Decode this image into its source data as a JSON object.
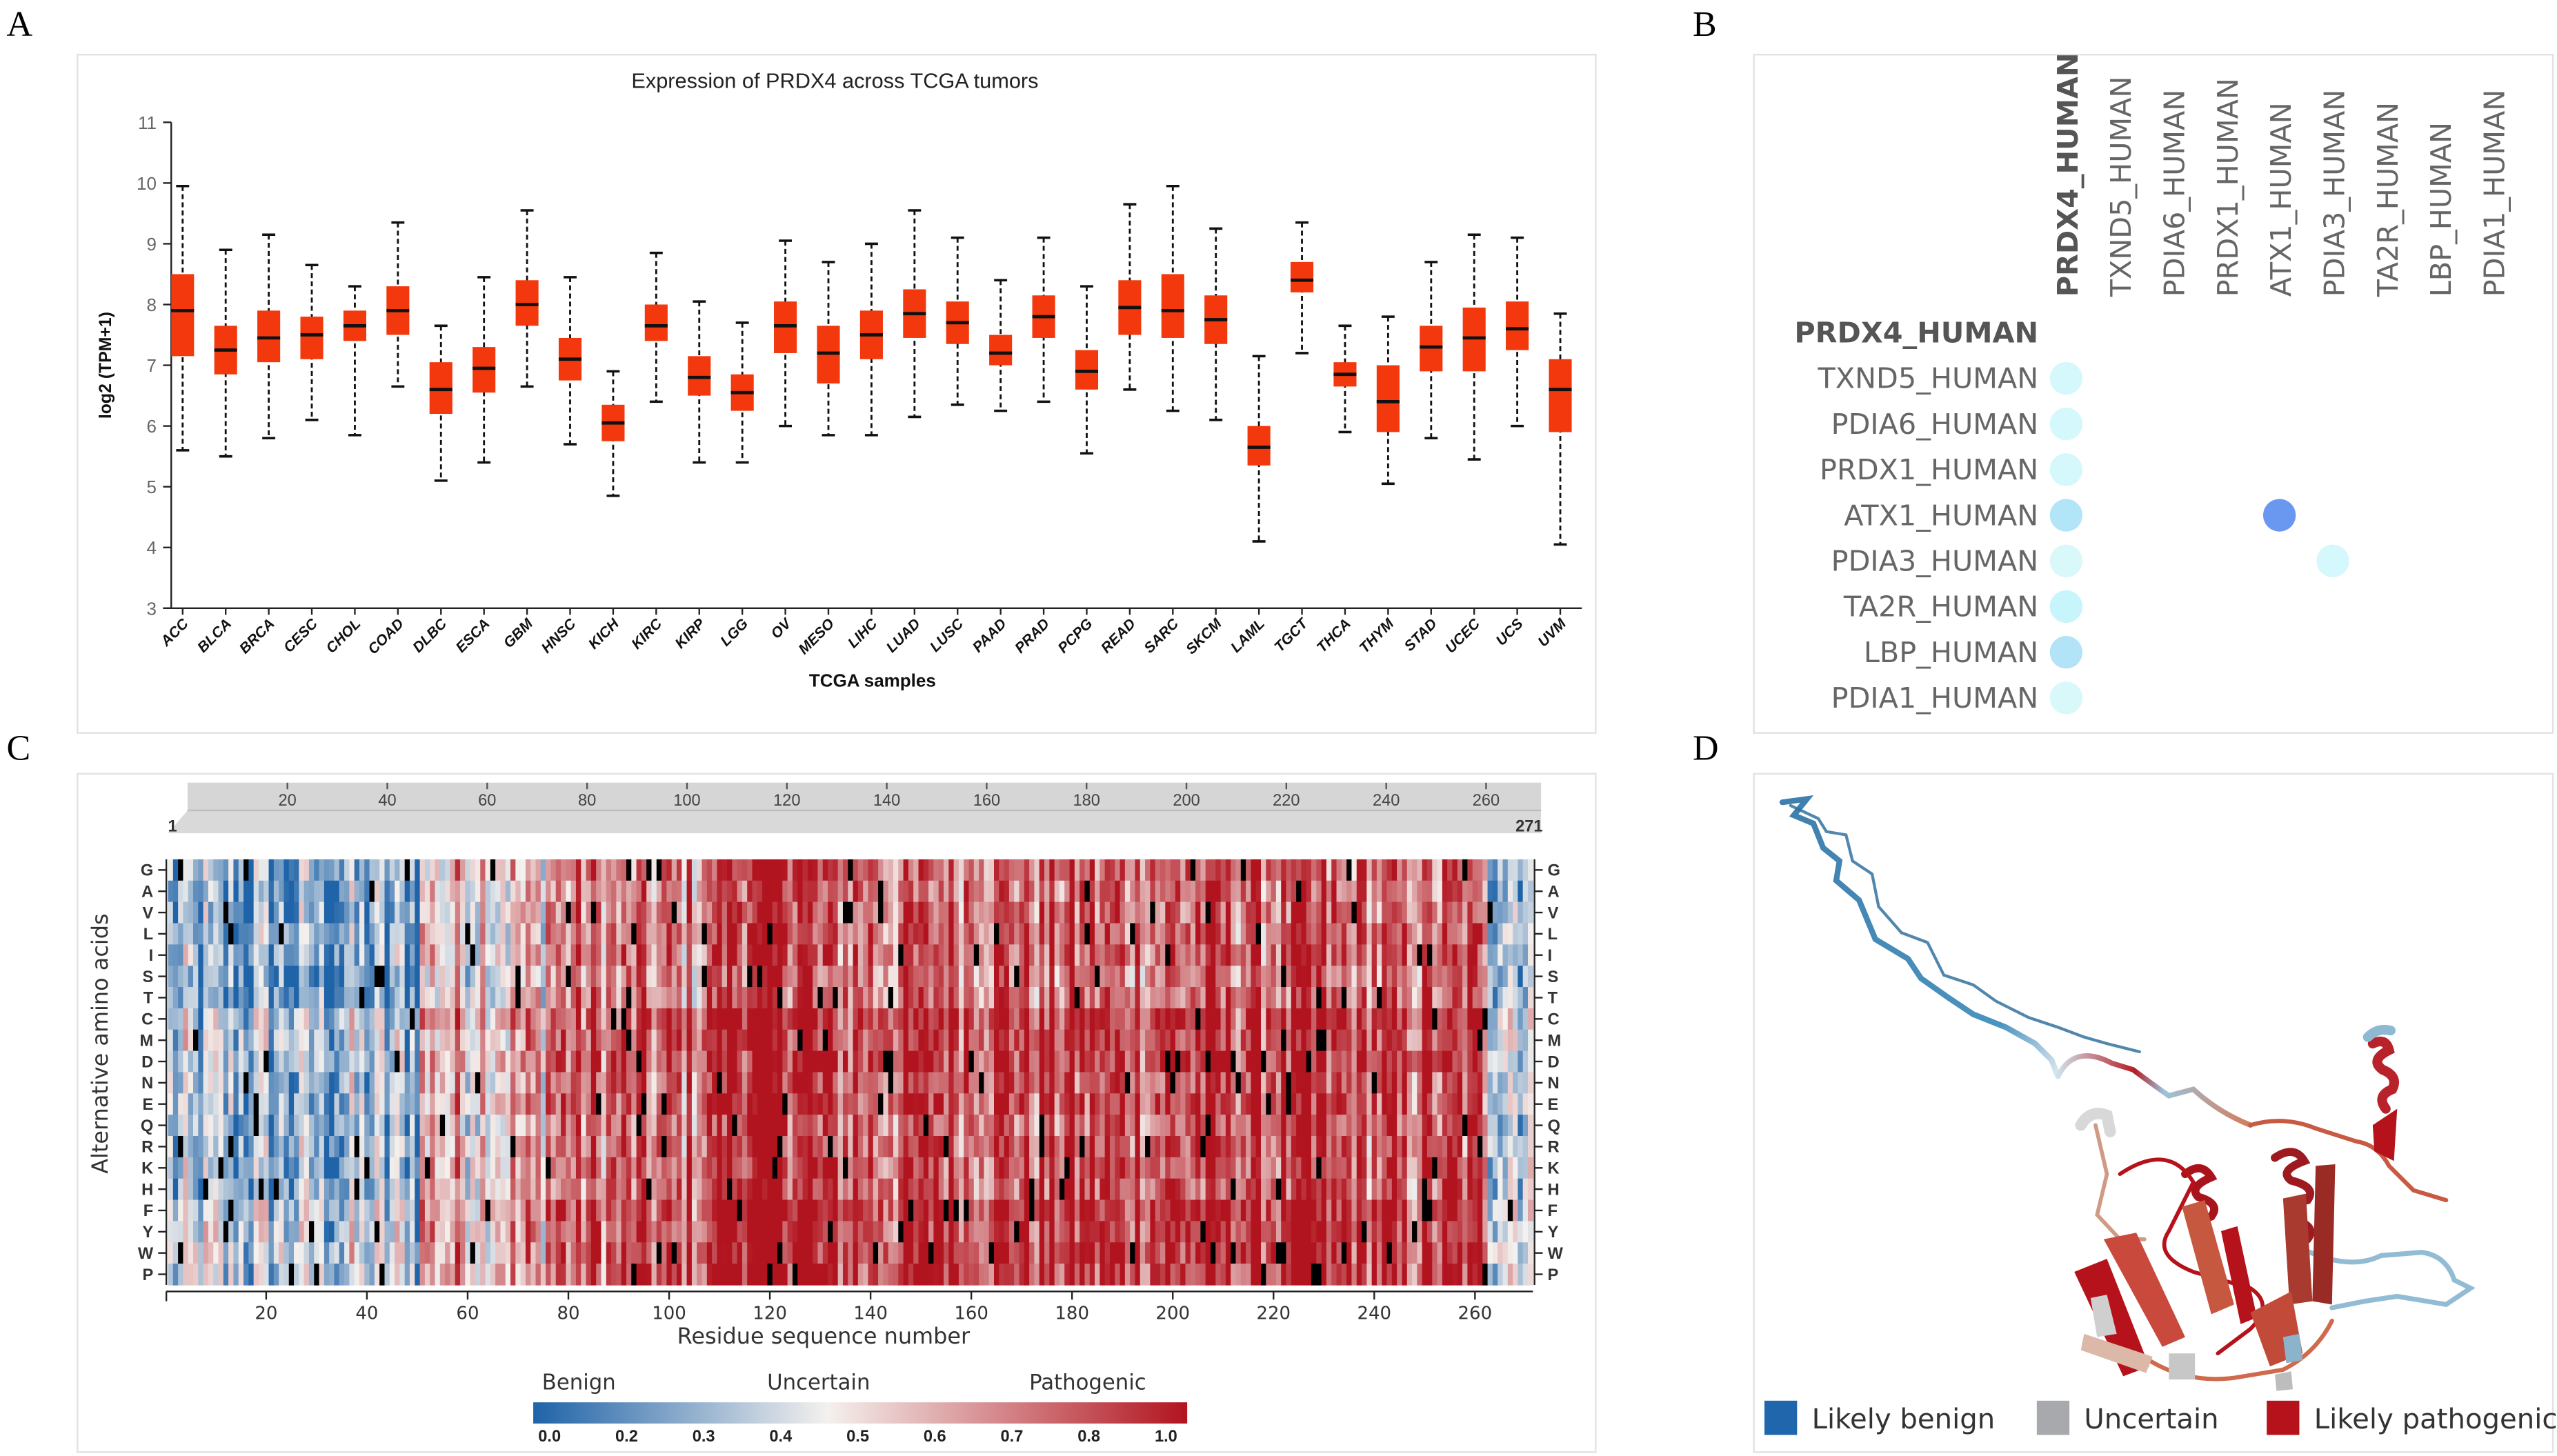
{
  "panels": {
    "a": "A",
    "b": "B",
    "c": "C",
    "d": "D"
  },
  "chart_data": [
    {
      "type": "box",
      "title": "Expression of PRDX4 across TCGA tumors",
      "xlabel": "TCGA samples",
      "ylabel": "log2 (TPM+1)",
      "ylim": [
        3,
        11
      ],
      "yticks": [
        3,
        4,
        5,
        6,
        7,
        8,
        9,
        10,
        11
      ],
      "box_color": "#f2380c",
      "categories": [
        "ACC",
        "BLCA",
        "BRCA",
        "CESC",
        "CHOL",
        "COAD",
        "DLBC",
        "ESCA",
        "GBM",
        "HNSC",
        "KICH",
        "KIRC",
        "KIRP",
        "LGG",
        "OV",
        "MESO",
        "LIHC",
        "LUAD",
        "LUSC",
        "PAAD",
        "PRAD",
        "PCPG",
        "READ",
        "SARC",
        "SKCM",
        "LAML",
        "TGCT",
        "THCA",
        "THYM",
        "STAD",
        "UCEC",
        "UCS",
        "UVM"
      ],
      "series": {
        "min": [
          5.6,
          5.5,
          5.8,
          6.1,
          5.85,
          6.65,
          5.1,
          5.4,
          6.65,
          5.7,
          4.85,
          6.4,
          5.4,
          5.4,
          6.0,
          5.85,
          5.85,
          6.15,
          6.35,
          6.25,
          6.4,
          5.55,
          6.6,
          6.25,
          6.1,
          4.1,
          7.2,
          5.9,
          5.05,
          5.8,
          5.45,
          6.0,
          4.05
        ],
        "q1": [
          7.15,
          6.85,
          7.05,
          7.1,
          7.4,
          7.5,
          6.2,
          6.55,
          7.65,
          6.75,
          5.75,
          7.4,
          6.5,
          6.25,
          7.2,
          6.7,
          7.1,
          7.45,
          7.35,
          7.0,
          7.45,
          6.6,
          7.5,
          7.45,
          7.35,
          5.35,
          8.2,
          6.65,
          5.9,
          6.9,
          6.9,
          7.25,
          5.9
        ],
        "median": [
          7.9,
          7.25,
          7.45,
          7.5,
          7.65,
          7.9,
          6.6,
          6.95,
          8.0,
          7.1,
          6.05,
          7.65,
          6.8,
          6.55,
          7.65,
          7.2,
          7.5,
          7.85,
          7.7,
          7.2,
          7.8,
          6.9,
          7.95,
          7.9,
          7.75,
          5.65,
          8.4,
          6.85,
          6.4,
          7.3,
          7.45,
          7.6,
          6.6
        ],
        "q3": [
          8.5,
          7.65,
          7.9,
          7.8,
          7.9,
          8.3,
          7.05,
          7.3,
          8.4,
          7.45,
          6.35,
          8.0,
          7.15,
          6.85,
          8.05,
          7.65,
          7.9,
          8.25,
          8.05,
          7.5,
          8.15,
          7.25,
          8.4,
          8.5,
          8.15,
          6.0,
          8.7,
          7.05,
          7.0,
          7.65,
          7.95,
          8.05,
          7.1
        ],
        "max": [
          9.95,
          8.9,
          9.15,
          8.65,
          8.3,
          9.35,
          7.65,
          8.45,
          9.55,
          8.45,
          6.9,
          8.85,
          8.05,
          7.7,
          9.05,
          8.7,
          9.0,
          9.55,
          9.1,
          8.4,
          9.1,
          8.3,
          9.65,
          9.95,
          9.25,
          7.15,
          9.35,
          7.65,
          7.8,
          8.7,
          9.15,
          9.1,
          7.85
        ]
      }
    },
    {
      "type": "dot-matrix",
      "columns": [
        "PRDX4_HUMAN",
        "TXND5_HUMAN",
        "PDIA6_HUMAN",
        "PRDX1_HUMAN",
        "ATX1_HUMAN",
        "PDIA3_HUMAN",
        "TA2R_HUMAN",
        "LBP_HUMAN",
        "PDIA1_HUMAN"
      ],
      "rows": [
        "PRDX4_HUMAN",
        "TXND5_HUMAN",
        "PDIA6_HUMAN",
        "PRDX1_HUMAN",
        "ATX1_HUMAN",
        "PDIA3_HUMAN",
        "TA2R_HUMAN",
        "LBP_HUMAN",
        "PDIA1_HUMAN"
      ],
      "dots": [
        {
          "row": 1,
          "col": 0,
          "color": "#d4f8fb"
        },
        {
          "row": 2,
          "col": 0,
          "color": "#d4f8fb"
        },
        {
          "row": 3,
          "col": 0,
          "color": "#d4f8fb"
        },
        {
          "row": 4,
          "col": 0,
          "color": "#b3e5f8"
        },
        {
          "row": 4,
          "col": 4,
          "color": "#6a98f0"
        },
        {
          "row": 5,
          "col": 0,
          "color": "#d8f8fa"
        },
        {
          "row": 5,
          "col": 5,
          "color": "#d4f8fb"
        },
        {
          "row": 6,
          "col": 0,
          "color": "#c8f5fb"
        },
        {
          "row": 7,
          "col": 0,
          "color": "#b3e3f7"
        },
        {
          "row": 8,
          "col": 0,
          "color": "#d8f8fa"
        }
      ]
    },
    {
      "type": "heatmap",
      "xlabel": "Residue sequence number",
      "ylabel": "Alternative amino acids",
      "rows": [
        "G",
        "A",
        "V",
        "L",
        "I",
        "S",
        "T",
        "C",
        "M",
        "D",
        "N",
        "E",
        "Q",
        "R",
        "K",
        "H",
        "F",
        "Y",
        "W",
        "P"
      ],
      "residues": 271,
      "xticks": [
        20,
        40,
        60,
        80,
        100,
        120,
        140,
        160,
        180,
        200,
        220,
        240,
        260
      ],
      "brush_start": "1",
      "brush_end": "271",
      "region_mean_scores": [
        {
          "from": 1,
          "to": 50,
          "score": 0.22
        },
        {
          "from": 51,
          "to": 75,
          "score": 0.55
        },
        {
          "from": 76,
          "to": 108,
          "score": 0.72
        },
        {
          "from": 109,
          "to": 128,
          "score": 0.95
        },
        {
          "from": 129,
          "to": 150,
          "score": 0.78
        },
        {
          "from": 151,
          "to": 170,
          "score": 0.85
        },
        {
          "from": 171,
          "to": 200,
          "score": 0.8
        },
        {
          "from": 201,
          "to": 230,
          "score": 0.82
        },
        {
          "from": 231,
          "to": 262,
          "score": 0.76
        },
        {
          "from": 263,
          "to": 271,
          "score": 0.4
        }
      ],
      "colorbar": {
        "labels": [
          "Benign",
          "Uncertain",
          "Pathogenic"
        ],
        "ticks": [
          "0.0",
          "0.2",
          "0.3",
          "0.4",
          "0.5",
          "0.6",
          "0.7",
          "0.8",
          "1.0"
        ],
        "low": "#1f63a8",
        "mid": "#f4f1ee",
        "high": "#b2141f",
        "missing": "#000000"
      }
    },
    {
      "type": "structure",
      "legend": [
        {
          "label": "Likely benign",
          "color": "#1f66ad"
        },
        {
          "label": "Uncertain",
          "color": "#a7a9ac"
        },
        {
          "label": "Likely pathogenic",
          "color": "#b5121b"
        }
      ]
    }
  ]
}
